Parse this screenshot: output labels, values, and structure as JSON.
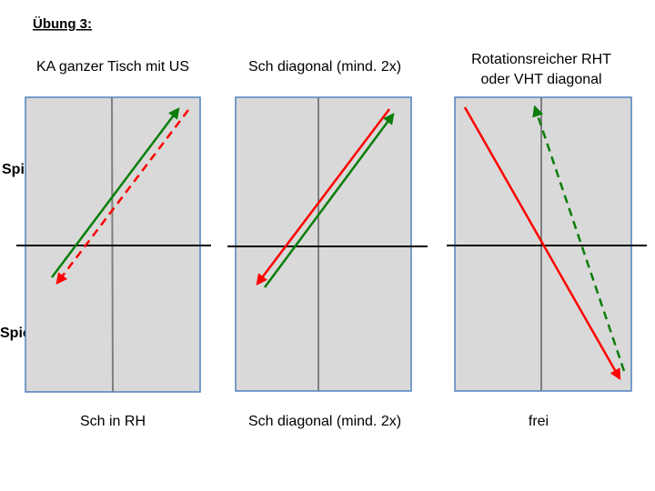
{
  "header": {
    "title": "Übung 3:"
  },
  "players": [
    "Spieler A",
    "Spieler B"
  ],
  "panels": [
    {
      "top_label": [
        "KA ganzer Tisch mit US"
      ],
      "bottom_label": "Sch in RH"
    },
    {
      "top_label": [
        "Sch diagonal (mind. 2x)"
      ],
      "bottom_label": "Sch diagonal (mind. 2x)"
    },
    {
      "top_label": [
        "Rotationsreicher RHT",
        "oder VHT diagonal"
      ],
      "bottom_label": "frei"
    }
  ]
}
